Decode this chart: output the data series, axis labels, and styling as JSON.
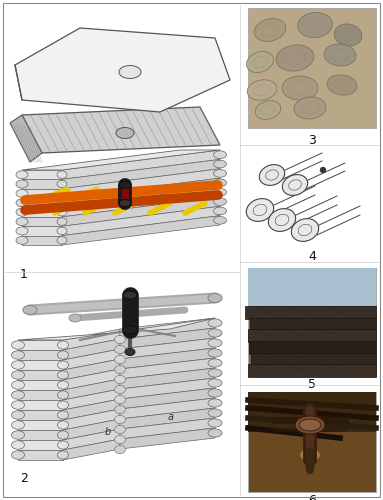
{
  "figure_width": 3.83,
  "figure_height": 5.0,
  "dpi": 100,
  "background_color": "#ffffff",
  "label_fontsize": 9,
  "label_color": "#111111",
  "outer_border_color": "#888888",
  "outer_border_linewidth": 0.8,
  "log_face_color": "#e8e8e8",
  "log_edge_color": "#666666",
  "log_end_color": "#cccccc",
  "beam_yellow": "#e8c800",
  "beam_orange": "#e06000",
  "beam_orange2": "#c04000",
  "beam_red": "#cc0000",
  "maimul_color": "#1a1a1a",
  "roof_slab_color": "#f2f2f2",
  "roof_plank_color": "#d8d8d8",
  "roof_plank_line": "#888888",
  "photo3_bg": "#b8a888",
  "photo5_bg": "#606868",
  "photo6_bg": "#6a4820"
}
